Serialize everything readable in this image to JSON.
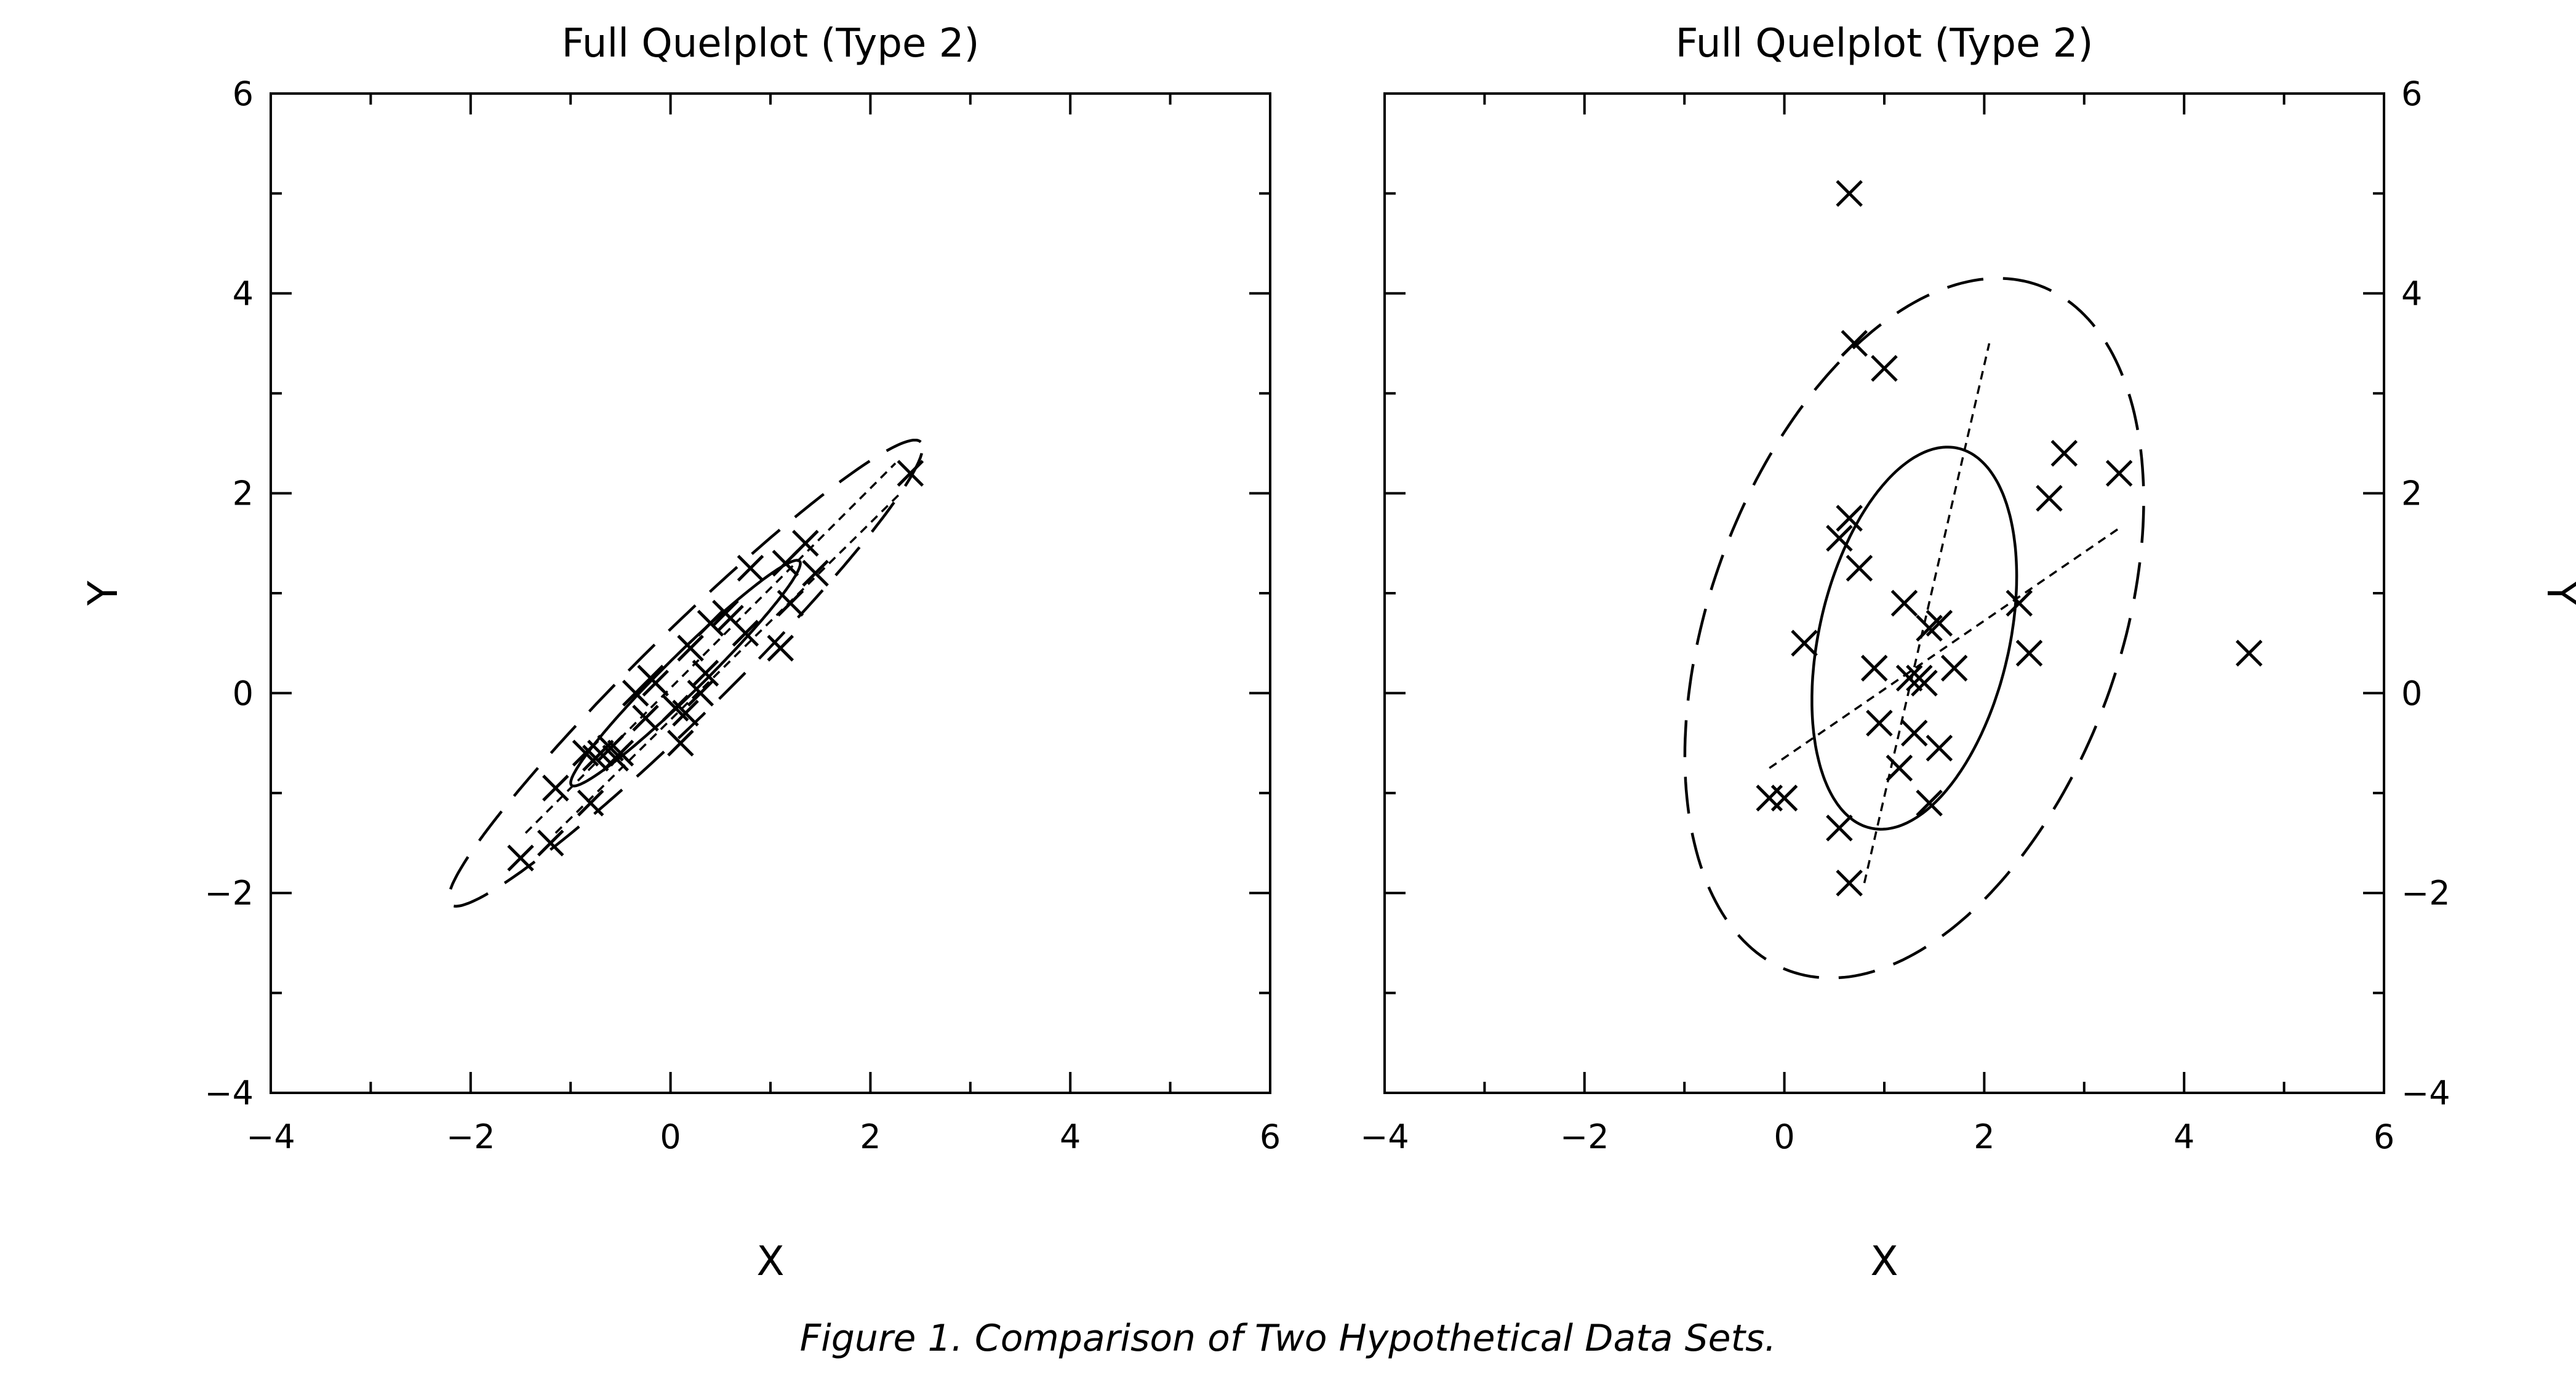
{
  "figure": {
    "caption": "Figure 1.  Comparison of Two Hypothetical Data Sets."
  },
  "chart_data": [
    {
      "type": "scatter",
      "title": "Full Quelplot (Type 2)",
      "xlabel": "X",
      "ylabel": "Y",
      "xlim": [
        -4,
        6
      ],
      "ylim": [
        -4,
        6
      ],
      "x_ticks": [
        -4,
        -2,
        0,
        2,
        4,
        6
      ],
      "y_ticks": [
        -4,
        -2,
        0,
        2,
        4,
        6
      ],
      "y_axis_side": "left",
      "grid": false,
      "marker": "x",
      "points": [
        [
          -1.5,
          -1.65
        ],
        [
          -1.2,
          -1.5
        ],
        [
          -1.15,
          -0.95
        ],
        [
          -0.85,
          -0.6
        ],
        [
          -0.8,
          -1.1
        ],
        [
          -0.75,
          -0.65
        ],
        [
          -0.7,
          -0.6
        ],
        [
          -0.6,
          -0.55
        ],
        [
          -0.55,
          -0.65
        ],
        [
          -0.5,
          -0.6
        ],
        [
          -0.35,
          0.0
        ],
        [
          -0.25,
          -0.25
        ],
        [
          -0.2,
          0.15
        ],
        [
          -0.15,
          0.1
        ],
        [
          0.05,
          -0.15
        ],
        [
          0.1,
          -0.5
        ],
        [
          0.15,
          -0.2
        ],
        [
          0.2,
          0.45
        ],
        [
          0.3,
          0.0
        ],
        [
          0.35,
          0.2
        ],
        [
          0.4,
          0.7
        ],
        [
          0.55,
          0.8
        ],
        [
          0.6,
          0.75
        ],
        [
          0.75,
          0.6
        ],
        [
          0.8,
          1.25
        ],
        [
          1.1,
          0.45
        ],
        [
          1.15,
          1.3
        ],
        [
          1.2,
          0.9
        ],
        [
          1.35,
          1.5
        ],
        [
          1.45,
          1.2
        ],
        [
          2.4,
          2.2
        ]
      ],
      "ellipses": [
        {
          "style": "solid",
          "center": [
            0.15,
            0.2
          ],
          "semi_major": 1.6,
          "semi_minor": 0.19,
          "angle_deg": 44.5
        },
        {
          "style": "dashed",
          "center": [
            0.15,
            0.2
          ],
          "semi_major": 3.3,
          "semi_minor": 0.42,
          "angle_deg": 44.5
        }
      ],
      "axis_lines": [
        {
          "style": "dotted",
          "from": [
            -1.45,
            -1.4
          ],
          "to": [
            2.25,
            2.3
          ]
        },
        {
          "style": "dotted",
          "from": [
            -1.15,
            -1.4
          ],
          "to": [
            2.3,
            2.0
          ]
        }
      ]
    },
    {
      "type": "scatter",
      "title": "Full Quelplot (Type 2)",
      "xlabel": "X",
      "ylabel": "Y",
      "xlim": [
        -4,
        6
      ],
      "ylim": [
        -4,
        6
      ],
      "x_ticks": [
        -4,
        -2,
        0,
        2,
        4,
        6
      ],
      "y_ticks": [
        -4,
        -2,
        0,
        2,
        4,
        6
      ],
      "y_axis_side": "right",
      "grid": false,
      "marker": "x",
      "points": [
        [
          -0.15,
          -1.05
        ],
        [
          0.0,
          -1.05
        ],
        [
          0.2,
          0.5
        ],
        [
          0.55,
          -1.35
        ],
        [
          0.55,
          1.55
        ],
        [
          0.65,
          5.0
        ],
        [
          0.65,
          1.75
        ],
        [
          0.65,
          -1.9
        ],
        [
          0.7,
          3.5
        ],
        [
          0.75,
          1.25
        ],
        [
          0.9,
          0.25
        ],
        [
          0.95,
          -0.3
        ],
        [
          1.0,
          3.25
        ],
        [
          1.15,
          -0.75
        ],
        [
          1.2,
          0.9
        ],
        [
          1.25,
          0.15
        ],
        [
          1.3,
          -0.4
        ],
        [
          1.35,
          0.15
        ],
        [
          1.4,
          0.1
        ],
        [
          1.45,
          0.65
        ],
        [
          1.45,
          -1.1
        ],
        [
          1.55,
          0.7
        ],
        [
          1.55,
          -0.55
        ],
        [
          1.7,
          0.25
        ],
        [
          2.35,
          0.9
        ],
        [
          2.45,
          0.4
        ],
        [
          2.65,
          1.95
        ],
        [
          2.8,
          2.4
        ],
        [
          3.35,
          2.2
        ],
        [
          4.65,
          0.4
        ]
      ],
      "ellipses": [
        {
          "style": "solid",
          "center": [
            1.3,
            0.55
          ],
          "semi_major": 1.95,
          "semi_minor": 0.95,
          "angle_deg": 77
        },
        {
          "style": "dashed",
          "center": [
            1.3,
            0.65
          ],
          "semi_major": 3.65,
          "semi_minor": 2.05,
          "angle_deg": 70
        }
      ],
      "axis_lines": [
        {
          "style": "dotted",
          "from": [
            0.8,
            -1.9
          ],
          "to": [
            2.05,
            3.5
          ]
        },
        {
          "style": "dotted",
          "from": [
            -0.15,
            -0.75
          ],
          "to": [
            3.35,
            1.65
          ]
        }
      ]
    }
  ]
}
